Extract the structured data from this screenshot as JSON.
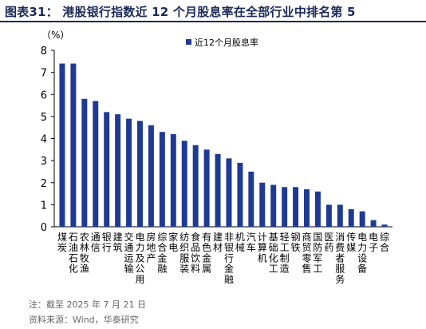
{
  "figure": {
    "title": "图表31：  港股银行指数近 12 个月股息率在全部行业中排名第 5",
    "note": "注：截至 2025 年 7 月 21 日",
    "source": "资料来源：Wind，华泰研究"
  },
  "colors": {
    "bar": "#1f3a93",
    "title": "#1b2a57",
    "axis": "#000000"
  },
  "chart_data": {
    "type": "bar",
    "ylabel": "（%）",
    "ylim": [
      0,
      8
    ],
    "yticks": [
      0,
      1,
      2,
      3,
      4,
      5,
      6,
      7,
      8
    ],
    "grid": false,
    "legend_position": "top-center",
    "categories": [
      "煤炭",
      "石油石化",
      "农林牧渔",
      "通信",
      "银行",
      "建筑",
      "交通运输",
      "电力及公用",
      "房地产",
      "综合金融",
      "家电",
      "纺织服装",
      "食品饮料",
      "有色金属",
      "建材",
      "非银行金融",
      "机械",
      "汽车",
      "计算机",
      "基础化工",
      "轻工制造",
      "钢铁",
      "商贸零售",
      "国防军工",
      "医药",
      "消费者服务",
      "传媒",
      "电力设备",
      "电子",
      "综合"
    ],
    "series": [
      {
        "name": "近12个月股息率",
        "values": [
          7.4,
          7.4,
          5.8,
          5.7,
          5.2,
          5.1,
          4.9,
          4.8,
          4.6,
          4.3,
          4.2,
          3.9,
          3.7,
          3.5,
          3.3,
          3.1,
          2.9,
          2.5,
          2.0,
          1.9,
          1.8,
          1.8,
          1.7,
          1.6,
          1.0,
          1.0,
          0.8,
          0.7,
          0.3,
          0.1
        ]
      }
    ]
  }
}
